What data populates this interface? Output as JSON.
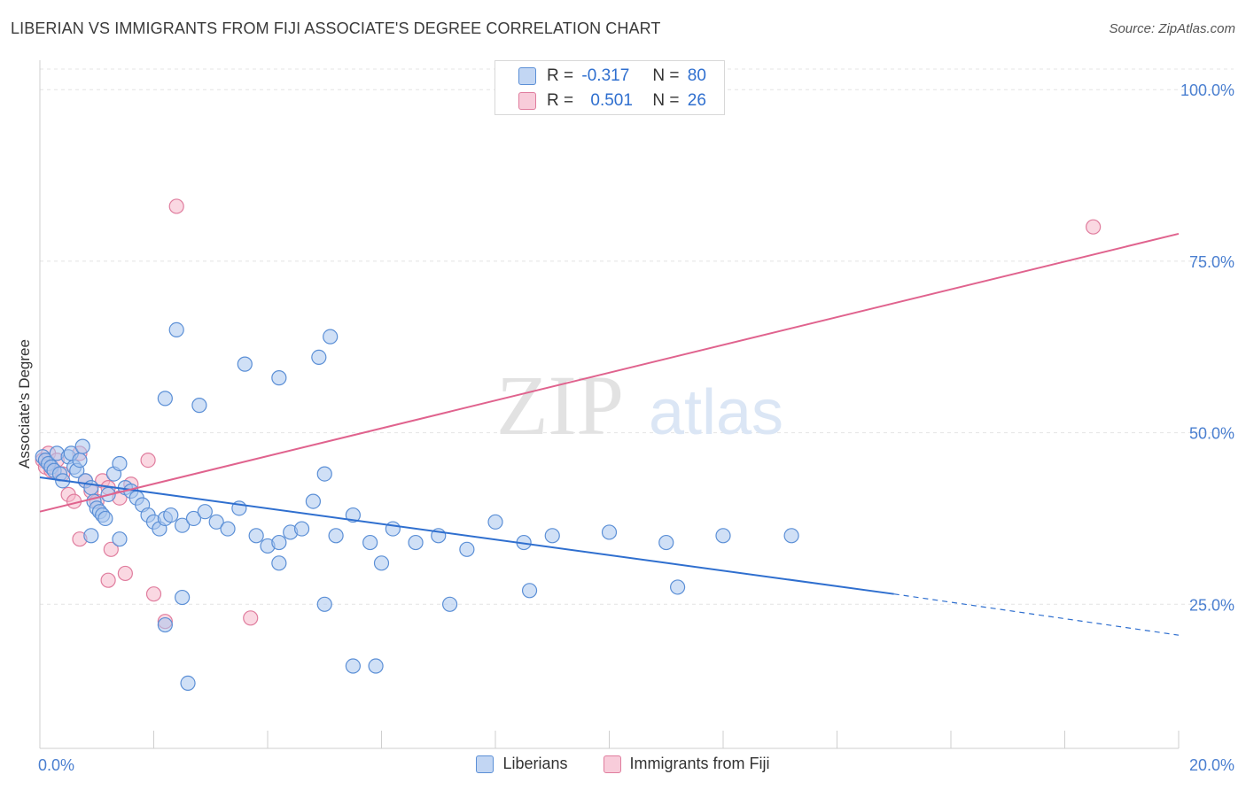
{
  "title": "LIBERIAN VS IMMIGRANTS FROM FIJI ASSOCIATE'S DEGREE CORRELATION CHART",
  "source": "Source: ZipAtlas.com",
  "watermark": {
    "zip": "ZIP",
    "atlas": "atlas"
  },
  "colors": {
    "blue_fill": "#a9c7ef",
    "blue_stroke": "#5b8fd6",
    "blue_line": "#2f6fcf",
    "pink_fill": "#f5b8cb",
    "pink_stroke": "#e07d9e",
    "pink_line": "#e0638e",
    "axis_text": "#4a7fd0",
    "grid": "#e4e4e4"
  },
  "stats": {
    "row1": {
      "r_label": "R =",
      "r_value": "-0.317",
      "n_label": "N =",
      "n_value": "80"
    },
    "row2": {
      "r_label": "R =",
      "r_value": "0.501",
      "n_label": "N =",
      "n_value": "26"
    }
  },
  "chart_data": {
    "type": "scatter",
    "xlabel": "",
    "ylabel": "Associate's Degree",
    "xlim": [
      0,
      20
    ],
    "ylim": [
      4,
      103
    ],
    "x_ticks": [
      0,
      2,
      4,
      6,
      8,
      10,
      12,
      14,
      16,
      18,
      20
    ],
    "x_tick_labels": [
      {
        "value": 0,
        "label": "0.0%"
      },
      {
        "value": 20,
        "label": "20.0%"
      }
    ],
    "y_ticks": [
      {
        "value": 25,
        "label": "25.0%"
      },
      {
        "value": 50,
        "label": "50.0%"
      },
      {
        "value": 75,
        "label": "75.0%"
      },
      {
        "value": 100,
        "label": "100.0%"
      }
    ],
    "grid": true,
    "legend_position": "bottom",
    "series": [
      {
        "name": "Liberians",
        "color": "blue",
        "points": [
          [
            0.05,
            46.5
          ],
          [
            0.1,
            46
          ],
          [
            0.15,
            45.5
          ],
          [
            0.2,
            45
          ],
          [
            0.25,
            44.5
          ],
          [
            0.3,
            47
          ],
          [
            0.35,
            44
          ],
          [
            0.4,
            43
          ],
          [
            0.5,
            46.5
          ],
          [
            0.55,
            47
          ],
          [
            0.6,
            45
          ],
          [
            0.65,
            44.5
          ],
          [
            0.7,
            46
          ],
          [
            0.75,
            48
          ],
          [
            0.8,
            43
          ],
          [
            0.9,
            42
          ],
          [
            0.95,
            40
          ],
          [
            1.0,
            39
          ],
          [
            1.05,
            38.5
          ],
          [
            1.1,
            38
          ],
          [
            1.15,
            37.5
          ],
          [
            1.2,
            41
          ],
          [
            1.3,
            44
          ],
          [
            1.4,
            45.5
          ],
          [
            1.5,
            42
          ],
          [
            1.6,
            41.5
          ],
          [
            1.7,
            40.5
          ],
          [
            1.8,
            39.5
          ],
          [
            1.9,
            38
          ],
          [
            2.0,
            37
          ],
          [
            2.1,
            36
          ],
          [
            2.2,
            37.5
          ],
          [
            2.3,
            38
          ],
          [
            2.5,
            36.5
          ],
          [
            2.7,
            37.5
          ],
          [
            2.9,
            38.5
          ],
          [
            3.1,
            37
          ],
          [
            3.3,
            36
          ],
          [
            3.5,
            39
          ],
          [
            3.8,
            35
          ],
          [
            4.0,
            33.5
          ],
          [
            4.2,
            34
          ],
          [
            4.4,
            35.5
          ],
          [
            4.6,
            36
          ],
          [
            4.8,
            40
          ],
          [
            5.0,
            44
          ],
          [
            5.2,
            35
          ],
          [
            5.5,
            38
          ],
          [
            5.8,
            34
          ],
          [
            6.2,
            36
          ],
          [
            6.6,
            34
          ],
          [
            7.0,
            35
          ],
          [
            7.5,
            33
          ],
          [
            8.0,
            37
          ],
          [
            8.5,
            34
          ],
          [
            9.0,
            35
          ],
          [
            10.0,
            35.5
          ],
          [
            11.0,
            34
          ],
          [
            12.0,
            35
          ],
          [
            0.9,
            35
          ],
          [
            1.4,
            34.5
          ],
          [
            2.2,
            55
          ],
          [
            2.8,
            54
          ],
          [
            3.6,
            60
          ],
          [
            4.2,
            58
          ],
          [
            5.1,
            64
          ],
          [
            4.9,
            61
          ],
          [
            2.4,
            65
          ],
          [
            6.0,
            31
          ],
          [
            5.0,
            25
          ],
          [
            7.2,
            25
          ],
          [
            8.6,
            27
          ],
          [
            4.2,
            31
          ],
          [
            2.2,
            22
          ],
          [
            2.5,
            26
          ],
          [
            5.5,
            16
          ],
          [
            5.9,
            16
          ],
          [
            2.6,
            13.5
          ],
          [
            11.2,
            27.5
          ],
          [
            13.2,
            35
          ]
        ]
      },
      {
        "name": "Immigrants from Fiji",
        "color": "pink",
        "points": [
          [
            0.05,
            46
          ],
          [
            0.1,
            45
          ],
          [
            0.15,
            47
          ],
          [
            0.2,
            44.5
          ],
          [
            0.3,
            46
          ],
          [
            0.4,
            44
          ],
          [
            0.5,
            41
          ],
          [
            0.6,
            40
          ],
          [
            0.7,
            47
          ],
          [
            0.8,
            43
          ],
          [
            0.9,
            41.5
          ],
          [
            1.0,
            40
          ],
          [
            1.1,
            43
          ],
          [
            1.2,
            42
          ],
          [
            1.4,
            40.5
          ],
          [
            1.6,
            42.5
          ],
          [
            1.9,
            46
          ],
          [
            0.7,
            34.5
          ],
          [
            1.25,
            33
          ],
          [
            1.5,
            29.5
          ],
          [
            1.2,
            28.5
          ],
          [
            2.0,
            26.5
          ],
          [
            2.2,
            22.5
          ],
          [
            3.7,
            23
          ],
          [
            2.4,
            83
          ],
          [
            18.5,
            80
          ]
        ]
      }
    ],
    "trend_lines": [
      {
        "series": "Liberians",
        "x_start": 0,
        "y_start": 43.5,
        "x_solid_end": 15,
        "y_solid_end": 26.5,
        "x_end": 20,
        "y_end": 20.5
      },
      {
        "series": "Immigrants from Fiji",
        "x_start": 0,
        "y_start": 38.5,
        "x_end": 20,
        "y_end": 79
      }
    ]
  }
}
